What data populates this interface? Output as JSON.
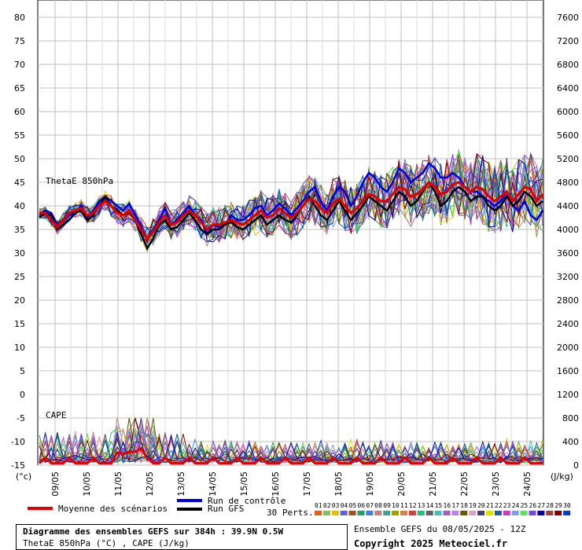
{
  "chart_data": {
    "type": "line",
    "title": "Diagramme des ensembles GEFS sur 384h : 39.9N 0.5W",
    "subtitle": "ThetaE 850hPa (°C) , CAPE (J/kg)",
    "left_axis": {
      "unit": "(°c)",
      "ticks": [
        "80",
        "75",
        "70",
        "65",
        "60",
        "55",
        "50",
        "45",
        "40",
        "35",
        "30",
        "25",
        "20",
        "15",
        "10",
        "5",
        "0",
        "-5",
        "-10",
        "-15"
      ],
      "range": [
        -15,
        80
      ]
    },
    "right_axis": {
      "unit": "(J/kg)",
      "ticks": [
        "7600",
        "7200",
        "6800",
        "6400",
        "6000",
        "5600",
        "5200",
        "4800",
        "4400",
        "4000",
        "3600",
        "3200",
        "2800",
        "2400",
        "2000",
        "1600",
        "1200",
        "800",
        "400",
        "0"
      ],
      "range": [
        0,
        7600
      ]
    },
    "x_ticks": [
      "09/05",
      "10/05",
      "11/05",
      "12/05",
      "13/05",
      "14/05",
      "15/05",
      "16/05",
      "17/05",
      "18/05",
      "19/05",
      "20/05",
      "21/05",
      "22/05",
      "23/05",
      "24/05"
    ],
    "panel_labels": {
      "thetae": "ThetaE 850hPa",
      "cape": "CAPE"
    },
    "series": [
      {
        "name": "Moyenne des scénarios",
        "variable": "ThetaE",
        "values": [
          38.5,
          38.5,
          37,
          35.5,
          37,
          38.5,
          39,
          39.5,
          38,
          38.5,
          40,
          41,
          40,
          38.5,
          38,
          39,
          37,
          35,
          33,
          34.5,
          36.5,
          38,
          36,
          36.5,
          38,
          39,
          38,
          36.5,
          35,
          36,
          36,
          36.5,
          37,
          36.5,
          36,
          37,
          38,
          39,
          37.5,
          38,
          39.5,
          38.5,
          37.5,
          38.5,
          40,
          41.5,
          41,
          39.5,
          38.5,
          40.5,
          41.5,
          40,
          38.5,
          39.5,
          41,
          42.5,
          42,
          41,
          41,
          42.5,
          44,
          43.5,
          42,
          42.5,
          43.5,
          45,
          44,
          42.5,
          43,
          44.5,
          45,
          44,
          43,
          44,
          43.5,
          42,
          41,
          42,
          43,
          41,
          42.5,
          44,
          43.5,
          41,
          42.5
        ]
      },
      {
        "name": "Run de contrôle",
        "variable": "ThetaE",
        "values": [
          38,
          39,
          38.5,
          36,
          37,
          38,
          38.5,
          40,
          37.5,
          39,
          41,
          42,
          41,
          40,
          39,
          40.5,
          38,
          35.5,
          33,
          35,
          37,
          39.5,
          36,
          37,
          38.5,
          40,
          38,
          37,
          34,
          36,
          35.5,
          36,
          38,
          37,
          37,
          38,
          39.5,
          40,
          38,
          39,
          40.5,
          39.5,
          38,
          39.5,
          41,
          43,
          44,
          41,
          39,
          42,
          44,
          43,
          40,
          42,
          45,
          47,
          46,
          44,
          43,
          45,
          48,
          47,
          45,
          46,
          47,
          49,
          48,
          46,
          46,
          47,
          46,
          44,
          43,
          43,
          42,
          41,
          40,
          41,
          43,
          40,
          39,
          41,
          38,
          37,
          39
        ]
      },
      {
        "name": "Run GFS",
        "variable": "ThetaE",
        "values": [
          37.5,
          38.5,
          38,
          35,
          36,
          37,
          38.5,
          39,
          37,
          38,
          40,
          42,
          40,
          39,
          38,
          38.5,
          37,
          34,
          31,
          33,
          36,
          37,
          35,
          35.5,
          37,
          38.5,
          37,
          35,
          34,
          35,
          35,
          36,
          36.5,
          35.5,
          35,
          36,
          37,
          38,
          36,
          37,
          38,
          37,
          36.5,
          38,
          40,
          42,
          40,
          38,
          37,
          39,
          41,
          39,
          37,
          38.5,
          40,
          42,
          41,
          40,
          39,
          41,
          43,
          42,
          40,
          41,
          43,
          45,
          43,
          40,
          41,
          43,
          44,
          43,
          41,
          42,
          42,
          40,
          39,
          40,
          42,
          40,
          41,
          43,
          42,
          40,
          41
        ]
      }
    ],
    "legend": {
      "mean": "Moyenne des scénarios",
      "control": "Run de contrôle",
      "gfs": "Run GFS",
      "perts": "30 Perts.",
      "pert_ids": [
        "01",
        "02",
        "03",
        "04",
        "05",
        "06",
        "07",
        "08",
        "09",
        "10",
        "11",
        "12",
        "13",
        "14",
        "15",
        "16",
        "17",
        "18",
        "19",
        "20",
        "21",
        "22",
        "23",
        "24",
        "25",
        "26",
        "27",
        "28",
        "29",
        "30"
      ],
      "pert_colors": [
        "#e06020",
        "#80c060",
        "#e0c000",
        "#6060e0",
        "#a05020",
        "#20a060",
        "#4080e0",
        "#c08080",
        "#40a0a0",
        "#a0a000",
        "#e08040",
        "#d04040",
        "#20c080",
        "#606060",
        "#40c0c0",
        "#a060c0",
        "#c080e0",
        "#606000",
        "#e0a0c0",
        "#404080",
        "#e0e000",
        "#2060a0",
        "#c040c0",
        "#80a0e0",
        "#60e060",
        "#8040e0",
        "#0000a0",
        "#a04040",
        "#800000",
        "#0040c0"
      ]
    },
    "grid": true
  },
  "footer": {
    "title_line1": "Diagramme des ensembles GEFS sur 384h : 39.9N 0.5W",
    "title_line2": "ThetaE 850hPa (°C) , CAPE (J/kg)",
    "run_info": "Ensemble GEFS du 08/05/2025 - 12Z",
    "copyright": "Copyright 2025 Meteociel.fr"
  }
}
